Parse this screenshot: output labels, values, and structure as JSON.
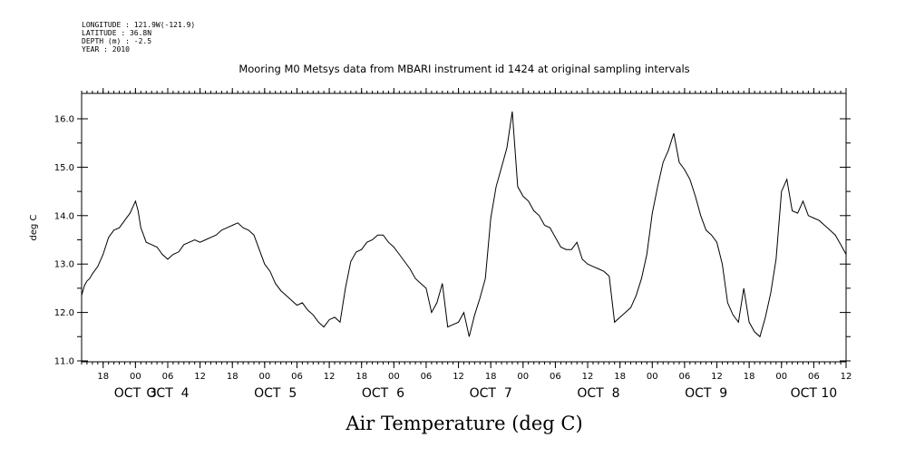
{
  "header": {
    "lines": [
      "LONGITUDE : 121.9W(-121.9)",
      "LATITUDE : 36.8N",
      "DEPTH (m) : -2.5",
      "YEAR : 2010"
    ]
  },
  "chart_data": {
    "type": "line",
    "title": "Mooring M0 Metsys data from MBARI instrument id 1424 at original sampling intervals",
    "xlabel": "Air Temperature (deg C)",
    "ylabel": "deg C",
    "ylim": [
      11.0,
      16.3
    ],
    "yticks": [
      "11.0",
      "12.0",
      "13.0",
      "14.0",
      "15.0",
      "16.0"
    ],
    "x_unit": "hours since Oct 2 00:00 (2010)",
    "xlim": [
      14,
      156
    ],
    "hour_ticks": [
      {
        "h": 18,
        "label": "18"
      },
      {
        "h": 24,
        "label": "00"
      },
      {
        "h": 30,
        "label": "06"
      },
      {
        "h": 36,
        "label": "12"
      },
      {
        "h": 42,
        "label": "18"
      },
      {
        "h": 48,
        "label": "00"
      },
      {
        "h": 54,
        "label": "06"
      },
      {
        "h": 60,
        "label": "12"
      },
      {
        "h": 66,
        "label": "18"
      },
      {
        "h": 72,
        "label": "00"
      },
      {
        "h": 78,
        "label": "06"
      },
      {
        "h": 84,
        "label": "12"
      },
      {
        "h": 90,
        "label": "18"
      },
      {
        "h": 96,
        "label": "00"
      },
      {
        "h": 102,
        "label": "06"
      },
      {
        "h": 108,
        "label": "12"
      },
      {
        "h": 114,
        "label": "18"
      },
      {
        "h": 120,
        "label": "00"
      },
      {
        "h": 126,
        "label": "06"
      },
      {
        "h": 132,
        "label": "12"
      },
      {
        "h": 138,
        "label": "18"
      },
      {
        "h": 144,
        "label": "00"
      },
      {
        "h": 150,
        "label": "06"
      },
      {
        "h": 156,
        "label": "12"
      }
    ],
    "day_labels": [
      {
        "h": 24,
        "label": "OCT  3"
      },
      {
        "h": 30,
        "label": "OCT  4"
      },
      {
        "h": 50,
        "label": "OCT  5"
      },
      {
        "h": 70,
        "label": "OCT  6"
      },
      {
        "h": 90,
        "label": "OCT  7"
      },
      {
        "h": 110,
        "label": "OCT  8"
      },
      {
        "h": 130,
        "label": "OCT  9"
      },
      {
        "h": 150,
        "label": "OCT 10"
      }
    ],
    "series": [
      {
        "x": [
          14.0,
          14.5,
          15.0,
          15.5,
          16.0,
          17.0,
          18.0,
          19.0,
          20.0,
          21.0,
          22.0,
          23.0,
          24.0,
          24.5,
          25.0,
          25.5,
          26.0,
          27.0,
          28.0,
          29.0,
          30.0,
          31.0,
          32.0,
          33.0,
          34.0,
          35.0,
          36.0,
          37.0,
          38.0,
          39.0,
          40.0,
          41.0,
          42.0,
          43.0,
          44.0,
          45.0,
          46.0,
          47.0,
          48.0,
          49.0,
          50.0,
          51.0,
          52.0,
          53.0,
          54.0,
          55.0,
          56.0,
          57.0,
          58.0,
          59.0,
          60.0,
          61.0,
          62.0,
          63.0,
          64.0,
          65.0,
          66.0,
          67.0,
          68.0,
          69.0,
          70.0,
          71.0,
          72.0,
          73.0,
          74.0,
          75.0,
          76.0,
          77.0,
          78.0,
          79.0,
          80.0,
          81.0,
          82.0,
          83.0,
          84.0,
          85.0,
          86.0,
          87.0,
          88.0,
          89.0,
          90.0,
          91.0,
          92.0,
          93.0,
          94.0,
          95.0,
          96.0,
          97.0,
          98.0,
          99.0,
          100.0,
          101.0,
          102.0,
          103.0,
          104.0,
          105.0,
          106.0,
          107.0,
          108.0,
          109.0,
          110.0,
          111.0,
          112.0,
          113.0,
          114.0,
          115.0,
          116.0,
          117.0,
          118.0,
          119.0,
          120.0,
          121.0,
          122.0,
          123.0,
          124.0,
          125.0,
          126.0,
          127.0,
          128.0,
          129.0,
          130.0,
          131.0,
          132.0,
          133.0,
          134.0,
          135.0,
          136.0,
          137.0,
          138.0,
          139.0,
          140.0,
          141.0,
          142.0,
          143.0,
          144.0,
          145.0,
          146.0,
          147.0,
          148.0,
          149.0,
          150.0,
          151.0,
          152.0,
          153.0,
          154.0,
          155.0,
          156.0
        ],
        "y": [
          12.35,
          12.55,
          12.65,
          12.7,
          12.8,
          12.95,
          13.2,
          13.55,
          13.7,
          13.75,
          13.9,
          14.05,
          14.3,
          14.1,
          13.75,
          13.6,
          13.45,
          13.4,
          13.35,
          13.2,
          13.1,
          13.2,
          13.25,
          13.4,
          13.45,
          13.5,
          13.45,
          13.5,
          13.55,
          13.6,
          13.7,
          13.75,
          13.8,
          13.85,
          13.75,
          13.7,
          13.6,
          13.3,
          13.0,
          12.85,
          12.6,
          12.45,
          12.35,
          12.25,
          12.15,
          12.2,
          12.05,
          11.95,
          11.8,
          11.7,
          11.85,
          11.9,
          11.8,
          12.5,
          13.05,
          13.25,
          13.3,
          13.45,
          13.5,
          13.6,
          13.6,
          13.45,
          13.35,
          13.2,
          13.05,
          12.9,
          12.7,
          12.6,
          12.5,
          12.0,
          12.2,
          12.6,
          11.7,
          11.75,
          11.8,
          12.0,
          11.5,
          11.95,
          12.3,
          12.7,
          13.95,
          14.6,
          15.0,
          15.4,
          16.15,
          14.6,
          14.4,
          14.3,
          14.1,
          14.0,
          13.8,
          13.75,
          13.55,
          13.35,
          13.3,
          13.3,
          13.45,
          13.1,
          13.0,
          12.95,
          12.9,
          12.85,
          12.75,
          11.8,
          11.9,
          12.0,
          12.1,
          12.35,
          12.7,
          13.2,
          14.05,
          14.6,
          15.1,
          15.35,
          15.7,
          15.1,
          14.95,
          14.75,
          14.4,
          14.0,
          13.7,
          13.6,
          13.45,
          13.0,
          12.2,
          11.95,
          11.8,
          12.5,
          11.8,
          11.6,
          11.5,
          11.9,
          12.4,
          13.1,
          14.5,
          14.75,
          14.1,
          14.05,
          14.3,
          14.0,
          13.95,
          13.9,
          13.8,
          13.7,
          13.6,
          13.4,
          13.2
        ]
      }
    ]
  }
}
